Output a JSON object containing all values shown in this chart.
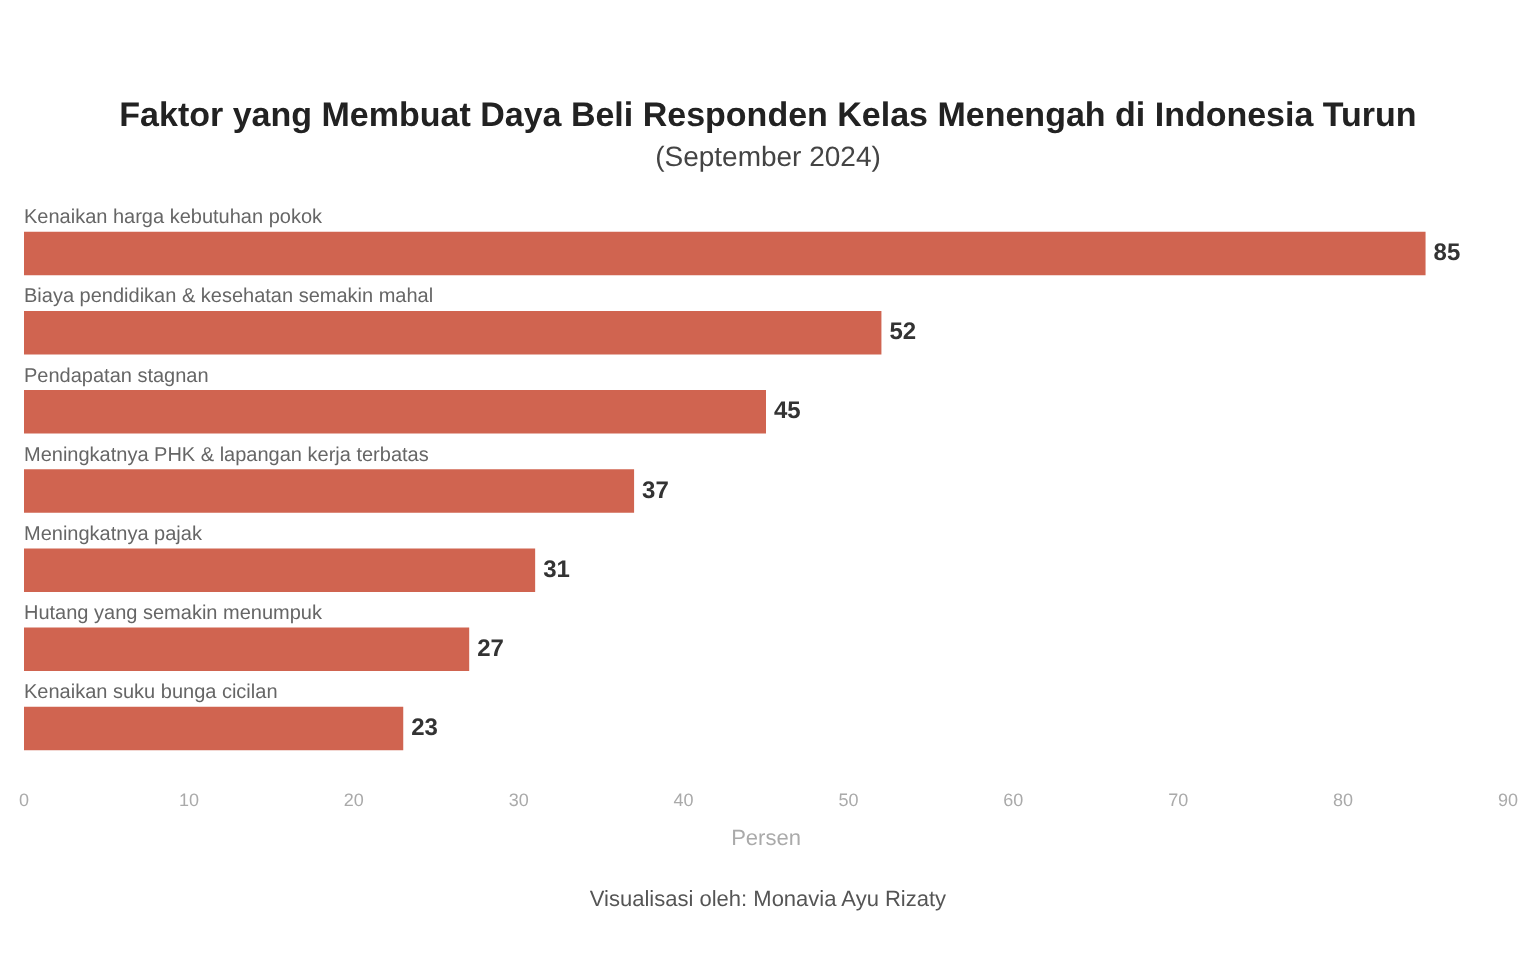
{
  "chart_data": {
    "type": "bar",
    "orientation": "horizontal",
    "title": "Faktor yang Membuat Daya Beli Responden Kelas Menengah di Indonesia Turun",
    "subtitle": "(September 2024)",
    "xlabel": "Persen",
    "categories": [
      "Kenaikan harga kebutuhan pokok",
      "Biaya pendidikan & kesehatan semakin mahal",
      "Pendapatan stagnan",
      "Meningkatnya PHK & lapangan kerja terbatas",
      "Meningkatnya pajak",
      "Hutang yang semakin menumpuk",
      "Kenaikan suku bunga cicilan"
    ],
    "values": [
      85,
      52,
      45,
      37,
      31,
      27,
      23
    ],
    "color": "#d06450",
    "xlim": [
      0,
      90
    ],
    "xticks": [
      0,
      10,
      20,
      30,
      40,
      50,
      60,
      70,
      80,
      90
    ],
    "data_labels": true,
    "grid": false,
    "legend": false,
    "annotations": [
      "Visualisasi oleh: Monavia Ayu Rizaty"
    ]
  }
}
